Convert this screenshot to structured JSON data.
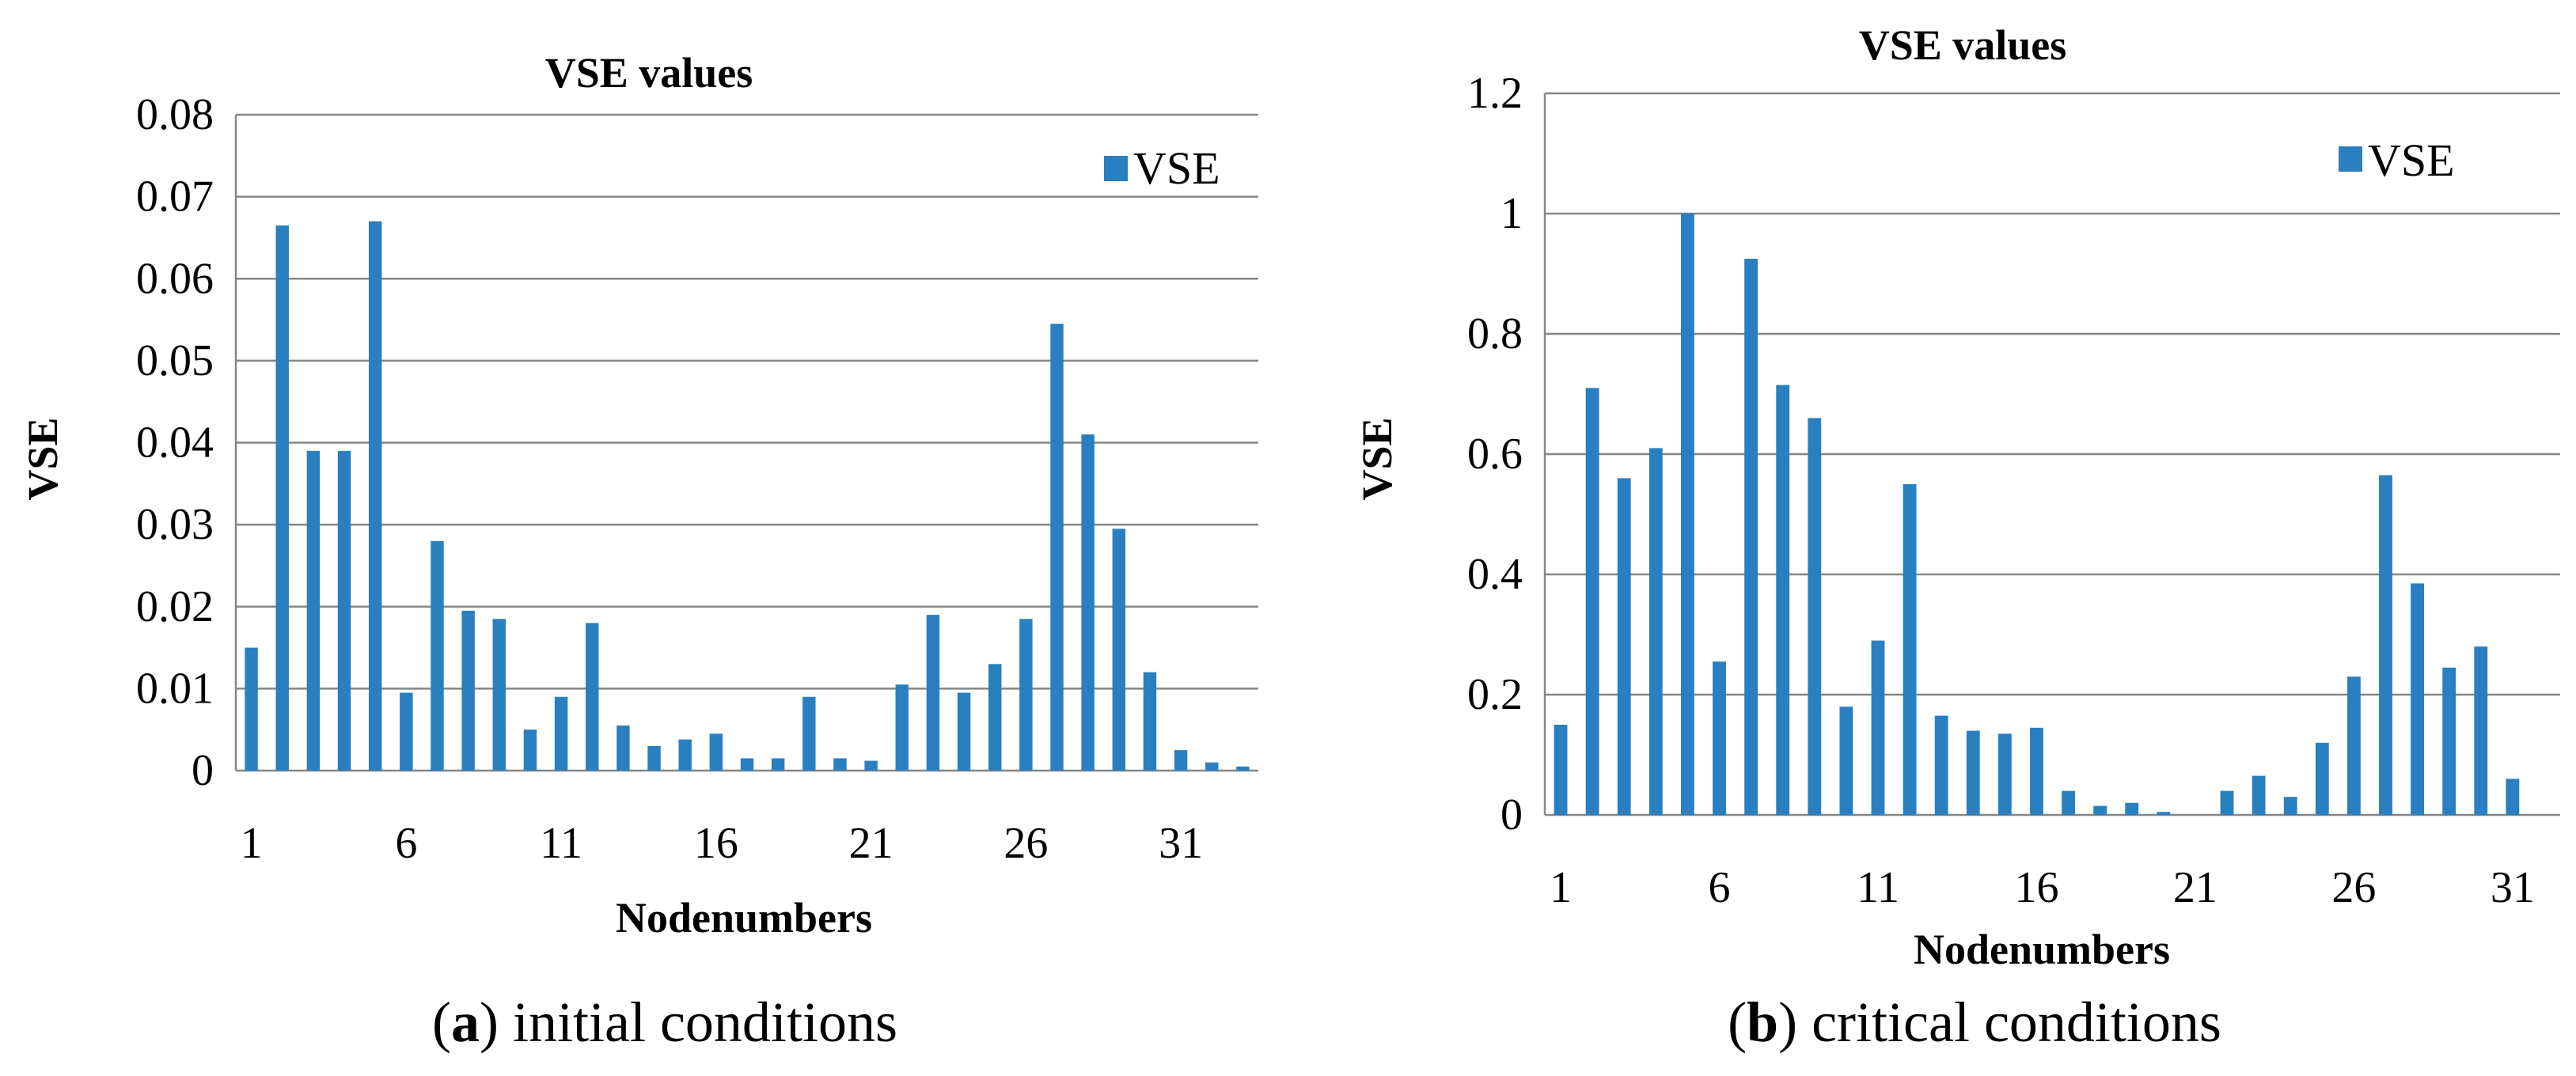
{
  "colors": {
    "bar": "#2a7fc1",
    "grid": "#868686"
  },
  "chart_data": [
    {
      "type": "bar",
      "title": "VSE values",
      "xlabel": "Nodenumbers",
      "ylabel": "VSE",
      "legend": "VSE",
      "legend_position": "top-right",
      "ylim": [
        0,
        0.08
      ],
      "yticks": [
        "0",
        "0.01",
        "0.02",
        "0.03",
        "0.04",
        "0.05",
        "0.06",
        "0.07",
        "0.08"
      ],
      "xticks": [
        "1",
        "6",
        "11",
        "16",
        "21",
        "26",
        "31"
      ],
      "categories": [
        "1",
        "2",
        "3",
        "4",
        "5",
        "6",
        "7",
        "8",
        "9",
        "10",
        "11",
        "12",
        "13",
        "14",
        "15",
        "16",
        "17",
        "18",
        "19",
        "20",
        "21",
        "22",
        "23",
        "24",
        "25",
        "26",
        "27",
        "28",
        "29",
        "30",
        "31",
        "32",
        "33"
      ],
      "values": [
        0.015,
        0.0665,
        0.039,
        0.039,
        0.067,
        0.0095,
        0.028,
        0.0195,
        0.0185,
        0.005,
        0.009,
        0.018,
        0.0055,
        0.003,
        0.0038,
        0.0045,
        0.0015,
        0.0015,
        0.009,
        0.0015,
        0.0012,
        0.0105,
        0.019,
        0.0095,
        0.013,
        0.0185,
        0.0545,
        0.041,
        0.0295,
        0.012,
        0.0025,
        0.001,
        0.0005
      ],
      "caption_label": "a",
      "caption_text": "initial conditions",
      "caption_open": "(",
      "caption_close": ")"
    },
    {
      "type": "bar",
      "title": "VSE values",
      "xlabel": "Nodenumbers",
      "ylabel": "VSE",
      "legend": "VSE",
      "legend_position": "top-right",
      "ylim": [
        0,
        1.2
      ],
      "yticks": [
        "0",
        "0.2",
        "0.4",
        "0.6",
        "0.8",
        "1",
        "1.2"
      ],
      "xticks": [
        "1",
        "6",
        "11",
        "16",
        "21",
        "26",
        "31"
      ],
      "categories": [
        "1",
        "2",
        "3",
        "4",
        "5",
        "6",
        "7",
        "8",
        "9",
        "10",
        "11",
        "12",
        "13",
        "14",
        "15",
        "16",
        "17",
        "18",
        "19",
        "20",
        "21",
        "22",
        "23",
        "24",
        "25",
        "26",
        "27",
        "28",
        "29",
        "30",
        "31",
        "32"
      ],
      "values": [
        0.15,
        0.71,
        0.56,
        0.61,
        1.0,
        0.255,
        0.925,
        0.715,
        0.66,
        0.18,
        0.29,
        0.55,
        0.165,
        0.14,
        0.135,
        0.145,
        0.04,
        0.015,
        0.02,
        0.005,
        0.0,
        0.04,
        0.065,
        0.03,
        0.12,
        0.23,
        0.565,
        0.385,
        0.245,
        0.28,
        0.06,
        0.0
      ],
      "caption_label": "b",
      "caption_text": "critical conditions",
      "caption_open": "(",
      "caption_close": ")"
    }
  ]
}
